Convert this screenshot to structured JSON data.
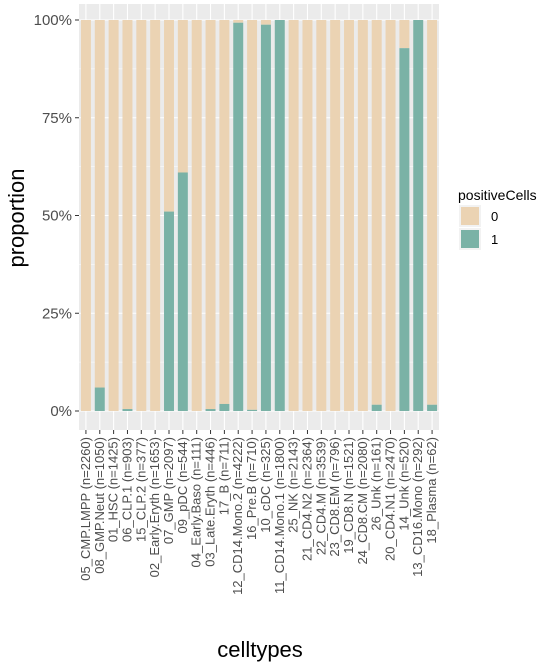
{
  "chart_data": {
    "type": "bar",
    "stacked": true,
    "normalized": true,
    "xlabel": "celltypes",
    "ylabel": "proportion",
    "ylim": [
      0,
      1
    ],
    "y_ticks": [
      "0%",
      "25%",
      "50%",
      "75%",
      "100%"
    ],
    "grid": true,
    "legend": {
      "title": "positiveCells",
      "position": "right",
      "entries": [
        {
          "label": "0",
          "color": "#EBD3B3"
        },
        {
          "label": "1",
          "color": "#7AB2A6"
        }
      ]
    },
    "categories": [
      "05_CMP.LMPP (n=2260)",
      "08_GMP.Neut (n=1050)",
      "01_HSC (n=1425)",
      "06_CLP.1 (n=903)",
      "15_CLP.2 (n=377)",
      "02_Early.Eryth (n=1653)",
      "07_GMP (n=2097)",
      "09_pDC (n=544)",
      "04_Early.Baso (n=111)",
      "03_Late.Eryth (n=446)",
      "17_B (n=711)",
      "12_CD14.Mono.2 (n=4222)",
      "16_Pre.B (n=710)",
      "10_cDC (n=325)",
      "11_CD14.Mono.1 (n=1800)",
      "25_NK (n=2143)",
      "21_CD4.N2 (n=2364)",
      "22_CD4.M (n=3539)",
      "23_CD8.EM (n=796)",
      "19_CD8.N (n=1521)",
      "24_CD8.CM (n=2080)",
      "26_Unk (n=161)",
      "20_CD4.N1 (n=2470)",
      "14_Unk (n=520)",
      "13_CD16.Mono (n=292)",
      "18_Plasma (n=62)"
    ],
    "series": [
      {
        "name": "0",
        "values": [
          1.0,
          0.94,
          1.0,
          0.995,
          1.0,
          1.0,
          0.49,
          0.39,
          1.0,
          0.995,
          0.982,
          0.007,
          0.997,
          0.012,
          0.0,
          1.0,
          1.0,
          1.0,
          1.0,
          1.0,
          1.0,
          0.984,
          1.0,
          0.072,
          0.0,
          0.984
        ]
      },
      {
        "name": "1",
        "values": [
          0.0,
          0.06,
          0.0,
          0.005,
          0.0,
          0.0,
          0.51,
          0.61,
          0.0,
          0.005,
          0.018,
          0.993,
          0.003,
          0.988,
          1.0,
          0.0,
          0.0,
          0.0,
          0.0,
          0.0,
          0.0,
          0.016,
          0.0,
          0.928,
          1.0,
          0.016
        ]
      }
    ]
  }
}
